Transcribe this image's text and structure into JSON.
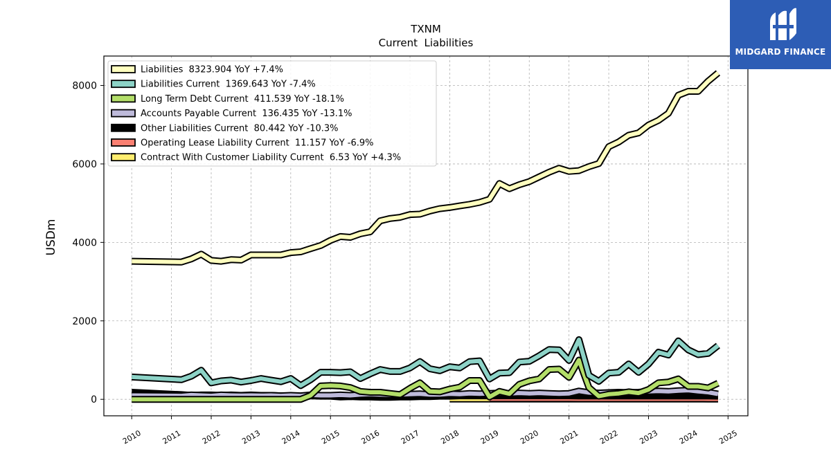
{
  "chart_data": {
    "type": "line",
    "title": "TXNM",
    "subtitle": "Current  Liabilities",
    "xlabel": "",
    "ylabel": "USDm",
    "xlim": [
      2009.3,
      2025.5
    ],
    "ylim": [
      -420,
      8750
    ],
    "x_ticks": [
      "2010",
      "2011",
      "2012",
      "2013",
      "2014",
      "2015",
      "2016",
      "2017",
      "2018",
      "2019",
      "2020",
      "2021",
      "2022",
      "2023",
      "2024",
      "2025"
    ],
    "y_ticks": [
      "0",
      "2000",
      "4000",
      "6000",
      "8000"
    ],
    "grid": true,
    "legend_position": "top-left",
    "series": [
      {
        "name": "Liabilities",
        "legend": "Liabilities  8323.904 YoY +7.4%",
        "color": "#ffffbf",
        "x": [
          2010.0,
          2011.25,
          2011.5,
          2011.75,
          2012.0,
          2012.25,
          2012.5,
          2012.75,
          2013.0,
          2013.25,
          2013.5,
          2013.75,
          2014.0,
          2014.25,
          2014.5,
          2014.75,
          2015.0,
          2015.25,
          2015.5,
          2015.75,
          2016.0,
          2016.25,
          2016.5,
          2016.75,
          2017.0,
          2017.25,
          2017.5,
          2017.75,
          2018.0,
          2018.25,
          2018.5,
          2018.75,
          2019.0,
          2019.25,
          2019.5,
          2019.75,
          2020.0,
          2020.25,
          2020.5,
          2020.75,
          2021.0,
          2021.25,
          2021.5,
          2021.75,
          2022.0,
          2022.25,
          2022.5,
          2022.75,
          2023.0,
          2023.25,
          2023.5,
          2023.75,
          2024.0,
          2024.25,
          2024.5,
          2024.75
        ],
        "values": [
          3520,
          3500,
          3580,
          3700,
          3540,
          3520,
          3560,
          3550,
          3680,
          3680,
          3680,
          3680,
          3740,
          3760,
          3840,
          3920,
          4050,
          4150,
          4130,
          4220,
          4270,
          4550,
          4610,
          4640,
          4710,
          4720,
          4800,
          4860,
          4890,
          4930,
          4970,
          5020,
          5100,
          5500,
          5370,
          5470,
          5550,
          5670,
          5790,
          5890,
          5810,
          5830,
          5930,
          6010,
          6440,
          6560,
          6730,
          6790,
          6990,
          7110,
          7290,
          7750,
          7850,
          7850,
          8110,
          8320
        ]
      },
      {
        "name": "Liabilities Current",
        "legend": "Liabilities Current  1369.643 YoY -7.4%",
        "color": "#8dd3c7",
        "x": [
          2010.0,
          2011.25,
          2011.5,
          2011.75,
          2012.0,
          2012.25,
          2012.5,
          2012.75,
          2013.0,
          2013.25,
          2013.5,
          2013.75,
          2014.0,
          2014.25,
          2014.5,
          2014.75,
          2015.0,
          2015.25,
          2015.5,
          2015.75,
          2016.0,
          2016.25,
          2016.5,
          2016.75,
          2017.0,
          2017.25,
          2017.5,
          2017.75,
          2018.0,
          2018.25,
          2018.5,
          2018.75,
          2019.0,
          2019.25,
          2019.5,
          2019.75,
          2020.0,
          2020.25,
          2020.5,
          2020.75,
          2021.0,
          2021.25,
          2021.5,
          2021.75,
          2022.0,
          2022.25,
          2022.5,
          2022.75,
          2023.0,
          2023.25,
          2023.5,
          2023.75,
          2024.0,
          2024.25,
          2024.5,
          2024.75
        ],
        "values": [
          570,
          500,
          590,
          740,
          420,
          470,
          490,
          440,
          480,
          530,
          490,
          450,
          530,
          350,
          500,
          690,
          690,
          680,
          700,
          530,
          650,
          760,
          710,
          710,
          800,
          960,
          780,
          730,
          830,
          800,
          960,
          980,
          520,
          670,
          680,
          950,
          970,
          1110,
          1270,
          1260,
          990,
          1520,
          610,
          460,
          670,
          690,
          900,
          690,
          900,
          1200,
          1130,
          1490,
          1260,
          1140,
          1170,
          1370
        ]
      },
      {
        "name": "Long Term Debt Current",
        "legend": "Long Term Debt Current  411.539 YoY -18.1%",
        "color": "#b3de69",
        "x": [
          2010.0,
          2011.25,
          2011.5,
          2011.75,
          2012.0,
          2012.25,
          2012.5,
          2012.75,
          2013.0,
          2013.25,
          2013.5,
          2013.75,
          2014.0,
          2014.25,
          2014.5,
          2014.75,
          2015.0,
          2015.25,
          2015.5,
          2015.75,
          2016.0,
          2016.25,
          2016.5,
          2016.75,
          2017.0,
          2017.25,
          2017.5,
          2017.75,
          2018.0,
          2018.25,
          2018.5,
          2018.75,
          2019.0,
          2019.25,
          2019.5,
          2019.75,
          2020.0,
          2020.25,
          2020.5,
          2020.75,
          2021.0,
          2021.25,
          2021.5,
          2021.75,
          2022.0,
          2022.25,
          2022.5,
          2022.75,
          2023.0,
          2023.25,
          2023.5,
          2023.75,
          2024.0,
          2024.25,
          2024.5,
          2024.75
        ],
        "values": [
          0,
          0,
          0,
          0,
          0,
          0,
          0,
          0,
          0,
          0,
          0,
          0,
          0,
          0,
          100,
          340,
          350,
          340,
          300,
          200,
          180,
          180,
          150,
          120,
          280,
          420,
          200,
          190,
          260,
          310,
          480,
          480,
          60,
          200,
          140,
          380,
          470,
          520,
          760,
          770,
          560,
          1000,
          300,
          80,
          130,
          150,
          190,
          160,
          250,
          420,
          440,
          520,
          330,
          330,
          290,
          410
        ]
      },
      {
        "name": "Accounts Payable Current",
        "legend": "Accounts Payable Current  136.435 YoY -13.1%",
        "color": "#bebada",
        "x": [
          2010.0,
          2011.25,
          2011.5,
          2011.75,
          2012.0,
          2012.25,
          2012.5,
          2012.75,
          2013.0,
          2013.25,
          2013.5,
          2013.75,
          2014.0,
          2014.25,
          2014.5,
          2014.75,
          2015.0,
          2015.25,
          2015.5,
          2015.75,
          2016.0,
          2016.25,
          2016.5,
          2016.75,
          2017.0,
          2017.25,
          2017.5,
          2017.75,
          2018.0,
          2018.25,
          2018.5,
          2018.75,
          2019.0,
          2019.25,
          2019.5,
          2019.75,
          2020.0,
          2020.25,
          2020.5,
          2020.75,
          2021.0,
          2021.25,
          2021.5,
          2021.75,
          2022.0,
          2022.25,
          2022.5,
          2022.75,
          2023.0,
          2023.25,
          2023.5,
          2023.75,
          2024.0,
          2024.25,
          2024.5,
          2024.75
        ],
        "values": [
          100,
          90,
          110,
          100,
          90,
          110,
          100,
          95,
          100,
          95,
          100,
          90,
          100,
          90,
          110,
          100,
          100,
          110,
          100,
          120,
          130,
          120,
          110,
          120,
          130,
          140,
          120,
          120,
          140,
          130,
          150,
          140,
          150,
          160,
          150,
          160,
          150,
          160,
          150,
          140,
          150,
          210,
          170,
          160,
          170,
          180,
          170,
          180,
          200,
          210,
          200,
          220,
          230,
          200,
          180,
          136
        ]
      },
      {
        "name": "Other Liabilities Current",
        "legend": "Other Liabilities Current  80.442 YoY -10.3%",
        "color": "#000000",
        "x": [
          2010.0,
          2011.25,
          2011.5,
          2011.75,
          2012.0,
          2012.25,
          2012.5,
          2012.75,
          2013.0,
          2013.25,
          2013.5,
          2013.75,
          2014.0,
          2014.25,
          2014.5,
          2014.75,
          2015.0,
          2015.25,
          2015.5,
          2015.75,
          2016.0,
          2016.25,
          2016.5,
          2016.75,
          2017.0,
          2017.25,
          2017.5,
          2017.75,
          2018.0,
          2018.25,
          2018.5,
          2018.75,
          2019.0,
          2019.25,
          2019.5,
          2019.75,
          2020.0,
          2020.25,
          2020.5,
          2020.75,
          2021.0,
          2021.25,
          2021.5,
          2021.75,
          2022.0,
          2022.25,
          2022.5,
          2022.75,
          2023.0,
          2023.25,
          2023.5,
          2023.75,
          2024.0,
          2024.25,
          2024.5,
          2024.75
        ],
        "values": [
          180,
          120,
          100,
          110,
          110,
          100,
          110,
          100,
          110,
          100,
          100,
          90,
          90,
          30,
          90,
          80,
          80,
          60,
          70,
          60,
          60,
          50,
          50,
          60,
          60,
          70,
          70,
          80,
          80,
          90,
          90,
          90,
          90,
          90,
          90,
          90,
          90,
          90,
          90,
          90,
          90,
          85,
          85,
          85,
          85,
          85,
          85,
          85,
          85,
          85,
          85,
          85,
          85,
          85,
          85,
          80
        ]
      },
      {
        "name": "Operating Lease Liability Current",
        "legend": "Operating Lease Liability Current  11.157 YoY -6.9%",
        "color": "#fb8072",
        "x": [
          2019.0,
          2019.25,
          2019.5,
          2019.75,
          2020.0,
          2020.25,
          2020.5,
          2020.75,
          2021.0,
          2021.25,
          2021.5,
          2021.75,
          2022.0,
          2022.25,
          2022.5,
          2022.75,
          2023.0,
          2023.25,
          2023.5,
          2023.75,
          2024.0,
          2024.25,
          2024.5,
          2024.75
        ],
        "values": [
          14,
          14,
          14,
          13,
          13,
          13,
          13,
          13,
          13,
          12,
          12,
          12,
          12,
          12,
          12,
          12,
          12,
          12,
          12,
          12,
          12,
          12,
          11,
          11
        ]
      },
      {
        "name": "Contract With Customer Liability Current",
        "legend": "Contract With Customer Liability Current  6.53 YoY +4.3%",
        "color": "#ffed6f",
        "x": [
          2018.0,
          2018.5,
          2019.0,
          2019.5,
          2020.0,
          2020.5,
          2021.0,
          2021.5,
          2022.0,
          2022.5,
          2023.0,
          2023.5,
          2024.0,
          2024.5,
          2024.75
        ],
        "values": [
          6,
          6,
          6,
          6,
          6,
          6,
          6,
          6,
          6,
          6,
          6,
          6,
          6,
          6,
          6.53
        ]
      }
    ]
  }
}
